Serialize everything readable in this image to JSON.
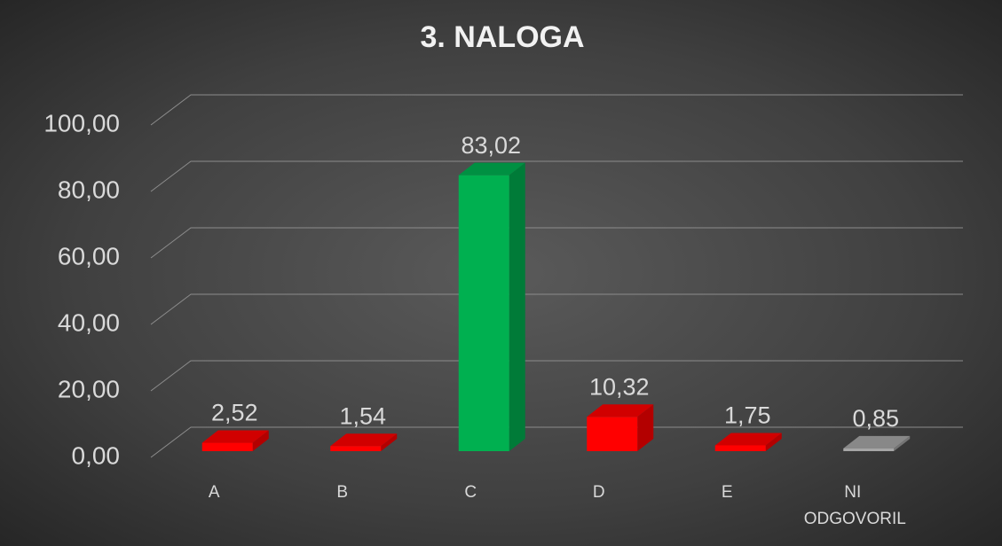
{
  "chart_data": {
    "type": "bar3d",
    "title": "3. NALOGA",
    "categories": [
      "A",
      "B",
      "C",
      "D",
      "E",
      "NI ODGOVORIL"
    ],
    "values": [
      2.52,
      1.54,
      83.02,
      10.32,
      1.75,
      0.85
    ],
    "value_labels": [
      "2,52",
      "1,54",
      "83,02",
      "10,32",
      "1,75",
      "0,85"
    ],
    "colors": [
      "#ff0000",
      "#ff0000",
      "#00b050",
      "#ff0000",
      "#ff0000",
      "#a6a6a6"
    ],
    "ylim": [
      0,
      100
    ],
    "yticks": [
      {
        "value": 0,
        "label": "0,00"
      },
      {
        "value": 20,
        "label": "20,00"
      },
      {
        "value": 40,
        "label": "40,00"
      },
      {
        "value": 60,
        "label": "60,00"
      },
      {
        "value": 80,
        "label": "80,00"
      },
      {
        "value": 100,
        "label": "100,00"
      }
    ],
    "grid": true
  }
}
